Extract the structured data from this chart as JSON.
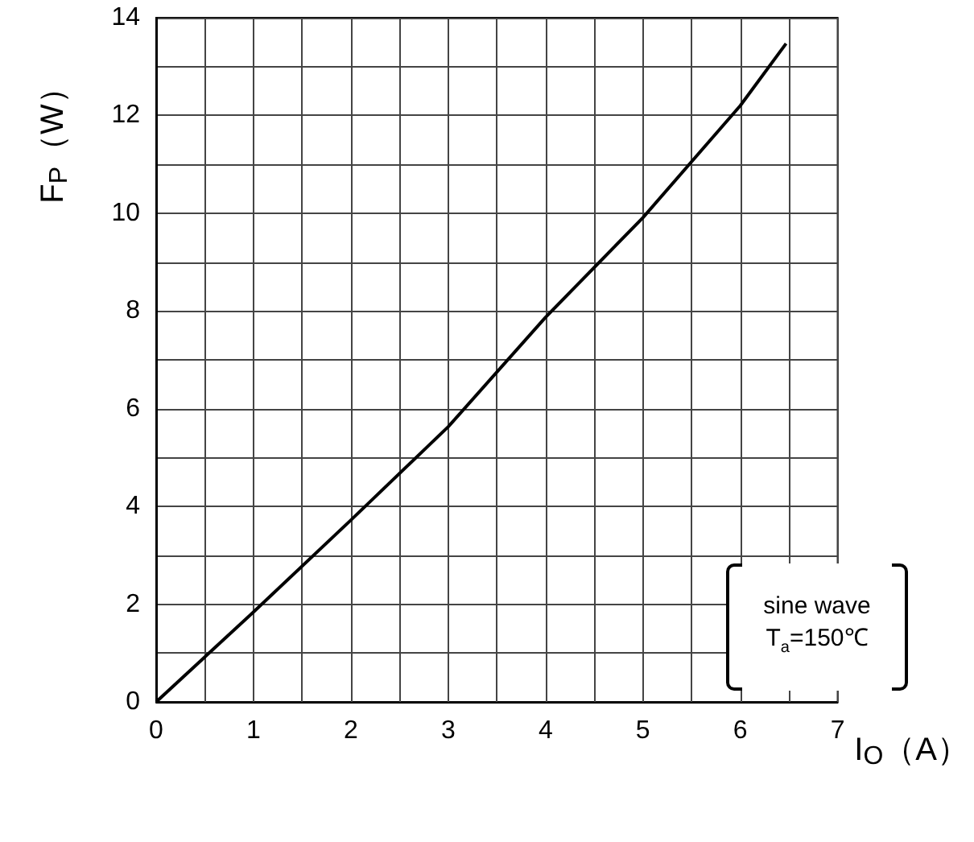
{
  "chart_data": {
    "type": "line",
    "xlabel": "I$_{O}$（A）",
    "ylabel": "F$_{P}$（W）",
    "series": [
      {
        "color": "#000000",
        "x": [
          0,
          1,
          2,
          3,
          4,
          5,
          6,
          6.47
        ],
        "values": [
          0,
          1.84,
          3.72,
          5.63,
          7.87,
          9.91,
          12.2,
          13.47
        ]
      }
    ],
    "xlim": [
      0,
      7
    ],
    "ylim": [
      0,
      14
    ],
    "xticks": [
      0,
      {
        "value": 0.5,
        "label": null
      },
      1,
      {
        "value": 1.5,
        "label": null
      },
      2,
      {
        "value": 2.5,
        "label": null
      },
      3,
      {
        "value": 3.5,
        "label": null
      },
      4,
      {
        "value": 4.5,
        "label": null
      },
      5,
      {
        "value": 5.5,
        "label": null
      },
      6,
      {
        "value": 6.5,
        "label": null
      },
      7
    ],
    "yticks": [
      0,
      {
        "value": 1,
        "label": null
      },
      2,
      {
        "value": 3,
        "label": null
      },
      4,
      {
        "value": 5,
        "label": null
      },
      6,
      {
        "value": 7,
        "label": null
      },
      8,
      {
        "value": 9,
        "label": null
      },
      10,
      {
        "value": 11,
        "label": null
      },
      12,
      {
        "value": 13,
        "label": null
      },
      14
    ],
    "grid": true,
    "marker": "none",
    "line_style": "solid",
    "annotations": [
      "sine wave",
      "T$_{a}$=150℃"
    ]
  }
}
